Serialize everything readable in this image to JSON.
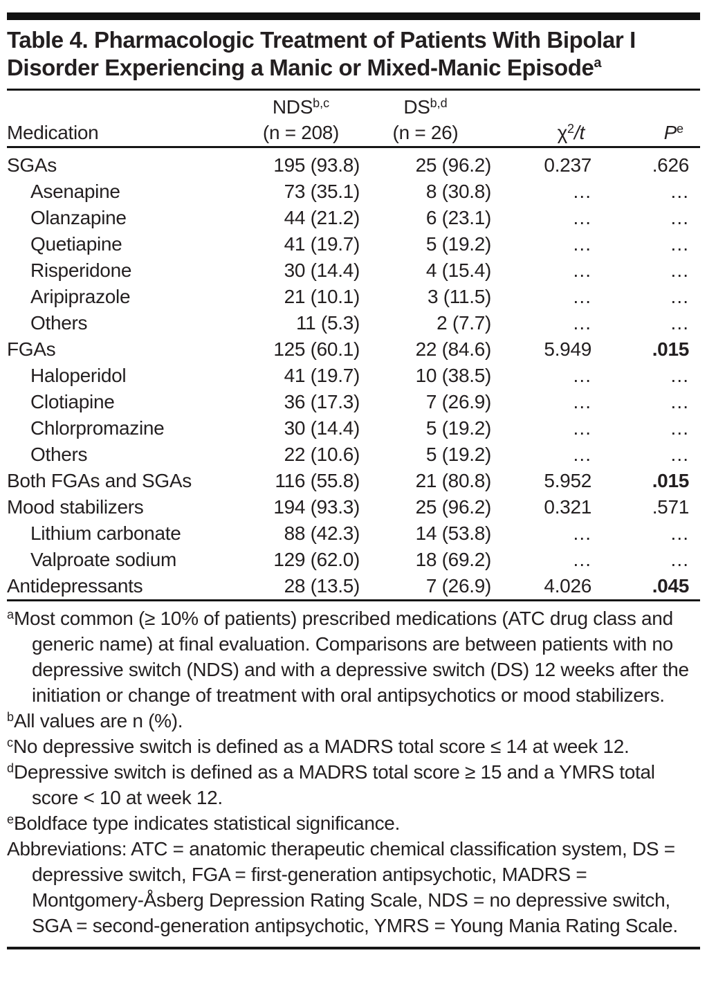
{
  "table": {
    "title_line1": "Table 4. Pharmacologic Treatment of Patients With Bipolar I",
    "title_line2": "Disorder Experiencing a Manic or Mixed-Manic Episode",
    "title_footnote_marker": "a",
    "header": {
      "medication": "Medication",
      "nds_label": "NDS",
      "nds_marker": "b,c",
      "nds_n": "(n = 208)",
      "ds_label": "DS",
      "ds_marker": "b,d",
      "ds_n": "(n = 26)",
      "chi_base": "χ",
      "chi_sup": "2",
      "chi_rest": "/t",
      "p_label": "P",
      "p_marker": "e"
    },
    "rows": [
      {
        "label": "SGAs",
        "indent": false,
        "nds": "195 (93.8)",
        "ds": "25 (96.2)",
        "chi": "0.237",
        "p": ".626",
        "p_bold": false
      },
      {
        "label": "Asenapine",
        "indent": true,
        "nds": "73 (35.1)",
        "ds": "8 (30.8)",
        "chi": "…",
        "p": "…",
        "p_bold": false
      },
      {
        "label": "Olanzapine",
        "indent": true,
        "nds": "44 (21.2)",
        "ds": "6 (23.1)",
        "chi": "…",
        "p": "…",
        "p_bold": false
      },
      {
        "label": "Quetiapine",
        "indent": true,
        "nds": "41 (19.7)",
        "ds": "5 (19.2)",
        "chi": "…",
        "p": "…",
        "p_bold": false
      },
      {
        "label": "Risperidone",
        "indent": true,
        "nds": "30 (14.4)",
        "ds": "4 (15.4)",
        "chi": "…",
        "p": "…",
        "p_bold": false
      },
      {
        "label": "Aripiprazole",
        "indent": true,
        "nds": "21 (10.1)",
        "ds": "3 (11.5)",
        "chi": "…",
        "p": "…",
        "p_bold": false
      },
      {
        "label": "Others",
        "indent": true,
        "nds": "11 (5.3)",
        "ds": "2 (7.7)",
        "chi": "…",
        "p": "…",
        "p_bold": false
      },
      {
        "label": "FGAs",
        "indent": false,
        "nds": "125 (60.1)",
        "ds": "22 (84.6)",
        "chi": "5.949",
        "p": ".015",
        "p_bold": true
      },
      {
        "label": "Haloperidol",
        "indent": true,
        "nds": "41 (19.7)",
        "ds": "10 (38.5)",
        "chi": "…",
        "p": "…",
        "p_bold": false
      },
      {
        "label": "Clotiapine",
        "indent": true,
        "nds": "36 (17.3)",
        "ds": "7 (26.9)",
        "chi": "…",
        "p": "…",
        "p_bold": false
      },
      {
        "label": "Chlorpromazine",
        "indent": true,
        "nds": "30 (14.4)",
        "ds": "5 (19.2)",
        "chi": "…",
        "p": "…",
        "p_bold": false
      },
      {
        "label": "Others",
        "indent": true,
        "nds": "22 (10.6)",
        "ds": "5 (19.2)",
        "chi": "…",
        "p": "…",
        "p_bold": false
      },
      {
        "label": "Both FGAs and SGAs",
        "indent": false,
        "nds": "116 (55.8)",
        "ds": "21 (80.8)",
        "chi": "5.952",
        "p": ".015",
        "p_bold": true
      },
      {
        "label": "Mood stabilizers",
        "indent": false,
        "nds": "194 (93.3)",
        "ds": "25 (96.2)",
        "chi": "0.321",
        "p": ".571",
        "p_bold": false
      },
      {
        "label": "Lithium carbonate",
        "indent": true,
        "nds": "88 (42.3)",
        "ds": "14 (53.8)",
        "chi": "…",
        "p": "…",
        "p_bold": false
      },
      {
        "label": "Valproate sodium",
        "indent": true,
        "nds": "129 (62.0)",
        "ds": "18 (69.2)",
        "chi": "…",
        "p": "…",
        "p_bold": false
      },
      {
        "label": "Antidepressants",
        "indent": false,
        "nds": "28 (13.5)",
        "ds": "7 (26.9)",
        "chi": "4.026",
        "p": ".045",
        "p_bold": true
      }
    ],
    "footnotes": [
      {
        "marker": "a",
        "text": "Most common (≥ 10% of patients) prescribed medications (ATC drug class and generic name) at final evaluation. Comparisons are between patients with no depressive switch (NDS) and with a depressive switch (DS) 12 weeks after the initiation or change of treatment with oral antipsychotics or mood stabilizers."
      },
      {
        "marker": "b",
        "text": "All values are n (%)."
      },
      {
        "marker": "c",
        "text": "No depressive switch is defined as a MADRS total score ≤ 14 at week 12."
      },
      {
        "marker": "d",
        "text": "Depressive switch is defined as a MADRS total score ≥ 15 and a YMRS total score < 10 at week 12."
      },
      {
        "marker": "e",
        "text": "Boldface type indicates statistical significance."
      },
      {
        "marker": "",
        "text": "Abbreviations: ATC = anatomic therapeutic chemical classification system, DS = depressive switch, FGA = first-generation antipsychotic, MADRS = Montgomery-Åsberg Depression Rating Scale, NDS = no depressive switch, SGA = second-generation antipsychotic, YMRS = Young Mania Rating Scale."
      }
    ],
    "colors": {
      "text": "#231f20",
      "rule": "#161616",
      "top_bar": "#121212"
    }
  }
}
